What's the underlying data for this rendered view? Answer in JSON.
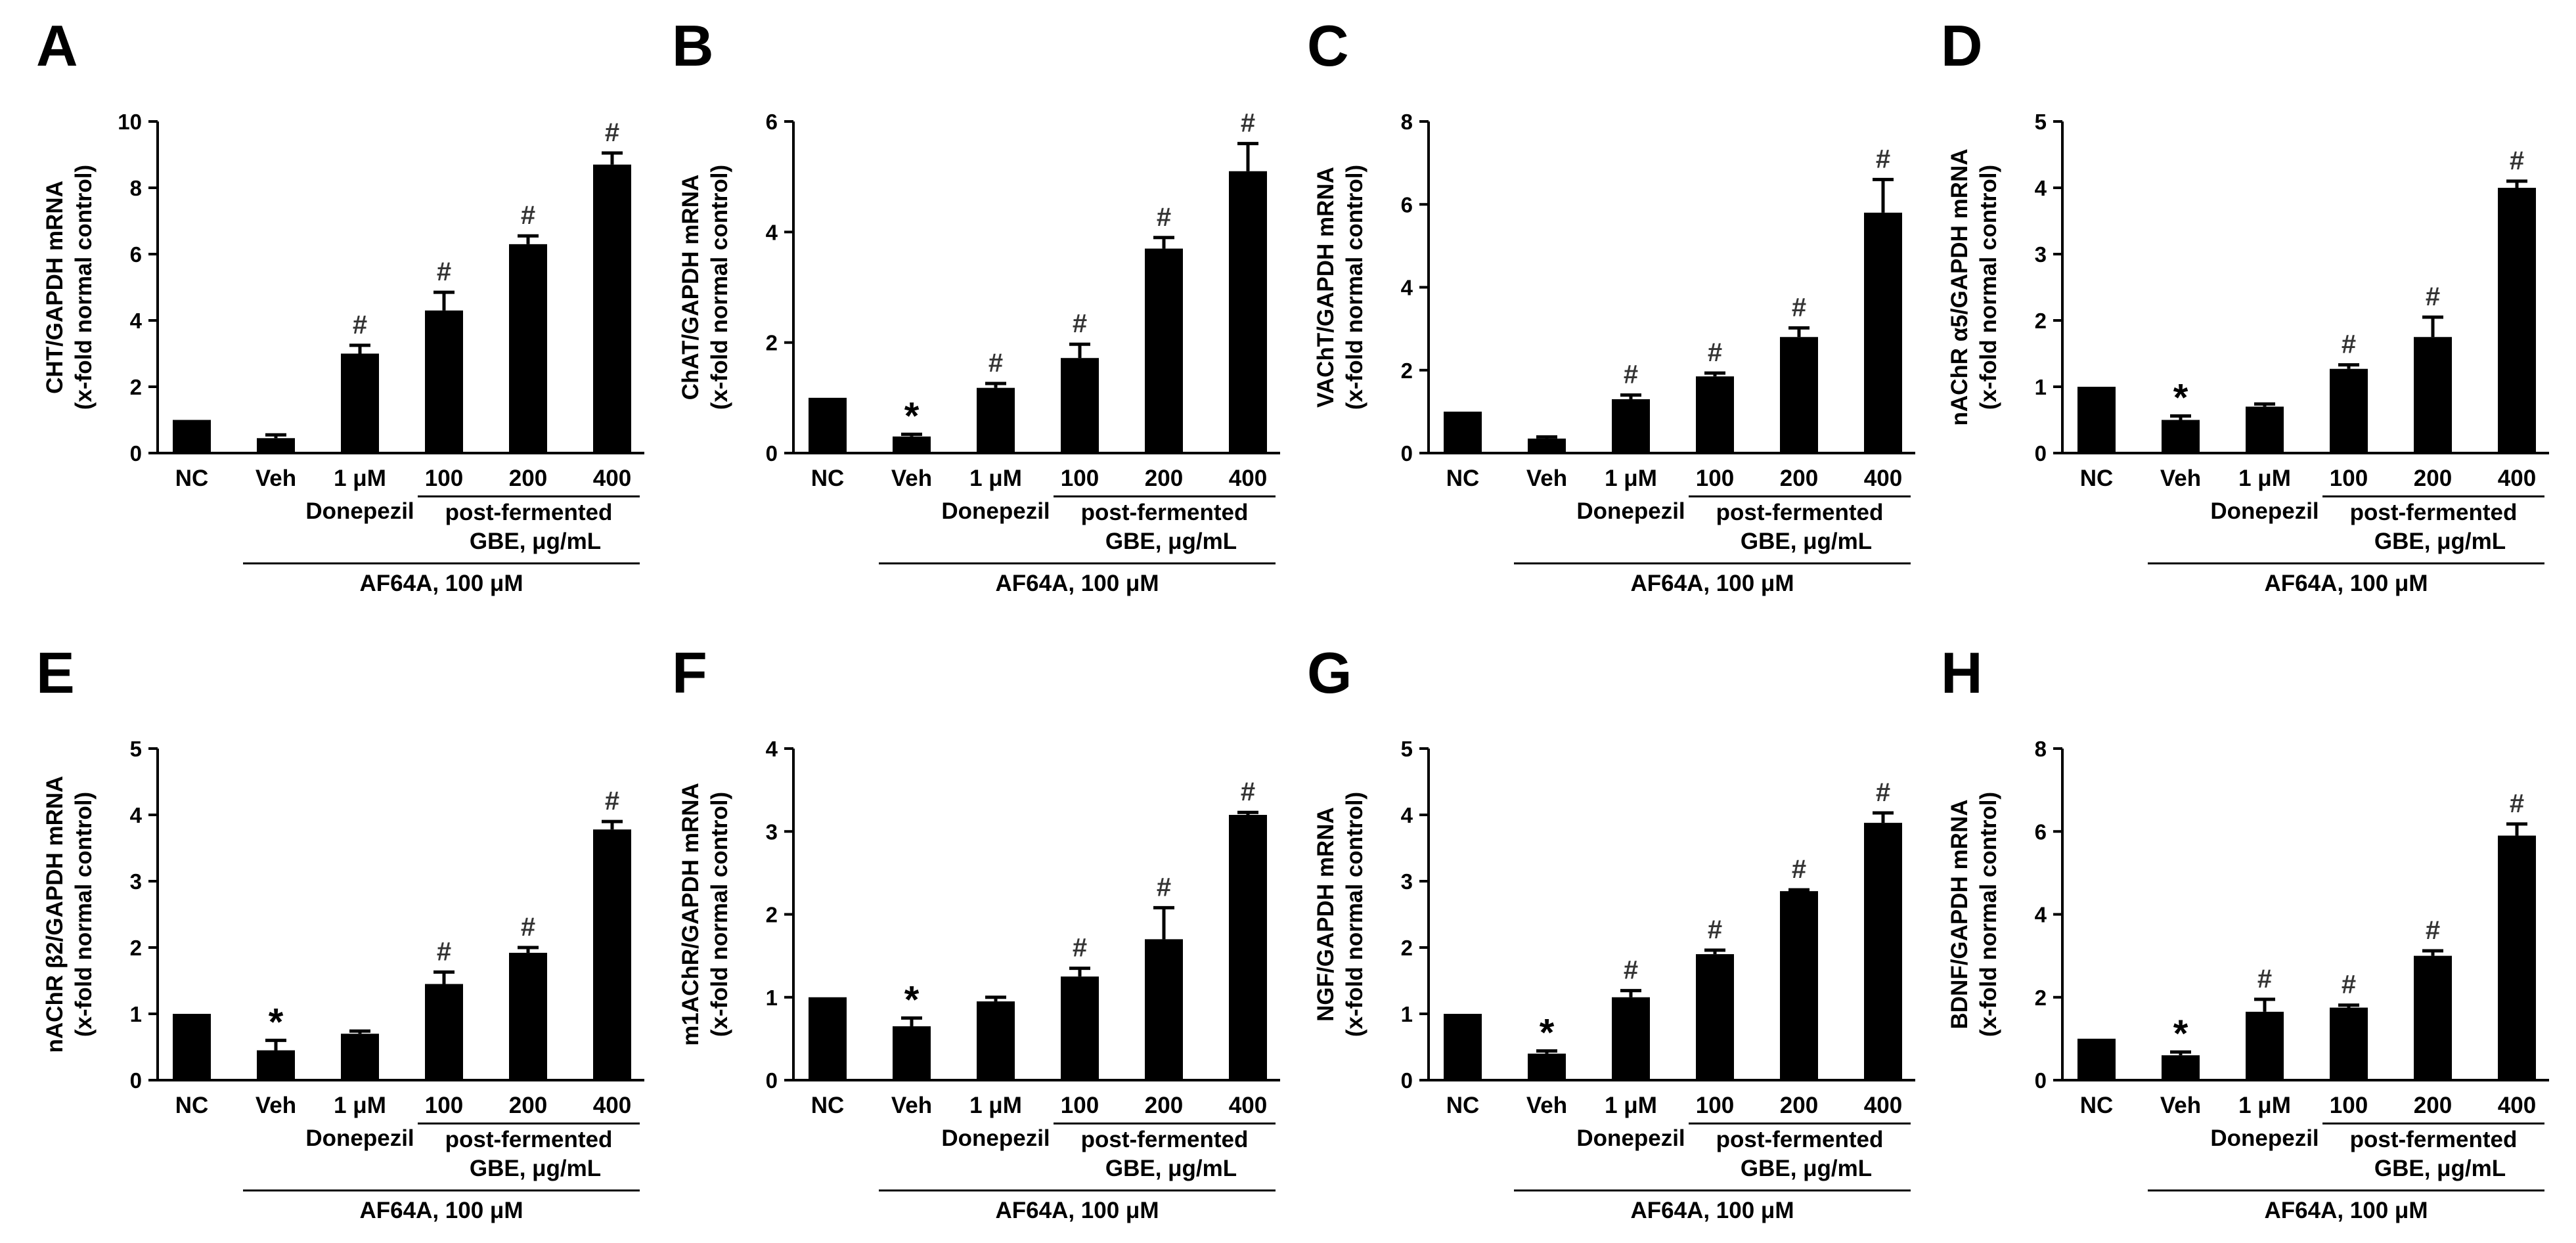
{
  "chart_data": [
    {
      "type": "bar",
      "panel": "A",
      "categories": [
        "NC",
        "Veh",
        "1 μM",
        "100",
        "200",
        "400"
      ],
      "values": [
        1.0,
        0.45,
        3.0,
        4.3,
        6.3,
        8.7
      ],
      "errors": [
        0.0,
        0.1,
        0.25,
        0.55,
        0.25,
        0.35
      ],
      "significance": [
        "",
        "",
        "#",
        "#",
        "#",
        "#"
      ],
      "ylabel": [
        "CHT/GAPDH mRNA",
        "(x-fold normal control)"
      ],
      "ylim": [
        0,
        10
      ],
      "yticks": [
        0,
        2,
        4,
        6,
        8,
        10
      ],
      "donepezil_label": "Donepezil",
      "gbe_label": [
        "post-fermented",
        "GBE, μg/mL"
      ],
      "af64a_label": "AF64A, 100 μM"
    },
    {
      "type": "bar",
      "panel": "B",
      "categories": [
        "NC",
        "Veh",
        "1 μM",
        "100",
        "200",
        "400"
      ],
      "values": [
        1.0,
        0.3,
        1.18,
        1.72,
        3.7,
        5.1
      ],
      "errors": [
        0.0,
        0.04,
        0.08,
        0.25,
        0.2,
        0.5
      ],
      "significance": [
        "",
        "*",
        "#",
        "#",
        "#",
        "#"
      ],
      "ylabel": [
        "ChAT/GAPDH mRNA",
        "(x-fold normal control)"
      ],
      "ylim": [
        0,
        6
      ],
      "yticks": [
        0,
        2,
        4,
        6
      ],
      "donepezil_label": "Donepezil",
      "gbe_label": [
        "post-fermented",
        "GBE, μg/mL"
      ],
      "af64a_label": "AF64A, 100 μM"
    },
    {
      "type": "bar",
      "panel": "C",
      "categories": [
        "NC",
        "Veh",
        "1 μM",
        "100",
        "200",
        "400"
      ],
      "values": [
        1.0,
        0.35,
        1.3,
        1.85,
        2.8,
        5.8
      ],
      "errors": [
        0.0,
        0.04,
        0.1,
        0.08,
        0.22,
        0.8
      ],
      "significance": [
        "",
        "",
        "#",
        "#",
        "#",
        "#"
      ],
      "ylabel": [
        "VAChT/GAPDH mRNA",
        "(x-fold normal control)"
      ],
      "ylim": [
        0,
        8
      ],
      "yticks": [
        0,
        2,
        4,
        6,
        8
      ],
      "donepezil_label": "Donepezil",
      "gbe_label": [
        "post-fermented",
        "GBE, μg/mL"
      ],
      "af64a_label": "AF64A, 100 μM"
    },
    {
      "type": "bar",
      "panel": "D",
      "categories": [
        "NC",
        "Veh",
        "1 μM",
        "100",
        "200",
        "400"
      ],
      "values": [
        1.0,
        0.5,
        0.7,
        1.27,
        1.75,
        4.0
      ],
      "errors": [
        0.0,
        0.06,
        0.04,
        0.06,
        0.3,
        0.1
      ],
      "significance": [
        "",
        "*",
        "",
        "#",
        "#",
        "#"
      ],
      "ylabel": [
        "nAChR α5/GAPDH mRNA",
        "(x-fold normal control)"
      ],
      "ylim": [
        0,
        5
      ],
      "yticks": [
        0,
        1,
        2,
        3,
        4,
        5
      ],
      "donepezil_label": "Donepezil",
      "gbe_label": [
        "post-fermented",
        "GBE, μg/mL"
      ],
      "af64a_label": "AF64A, 100 μM"
    },
    {
      "type": "bar",
      "panel": "E",
      "categories": [
        "NC",
        "Veh",
        "1 μM",
        "100",
        "200",
        "400"
      ],
      "values": [
        1.0,
        0.45,
        0.7,
        1.45,
        1.92,
        3.78
      ],
      "errors": [
        0.0,
        0.15,
        0.04,
        0.18,
        0.08,
        0.12
      ],
      "significance": [
        "",
        "*",
        "",
        "#",
        "#",
        "#"
      ],
      "ylabel": [
        "nAChR β2/GAPDH mRNA",
        "(x-fold normal control)"
      ],
      "ylim": [
        0,
        5
      ],
      "yticks": [
        0,
        1,
        2,
        3,
        4,
        5
      ],
      "donepezil_label": "Donepezil",
      "gbe_label": [
        "post-fermented",
        "GBE, μg/mL"
      ],
      "af64a_label": "AF64A, 100 μM"
    },
    {
      "type": "bar",
      "panel": "F",
      "categories": [
        "NC",
        "Veh",
        "1 μM",
        "100",
        "200",
        "400"
      ],
      "values": [
        1.0,
        0.65,
        0.95,
        1.25,
        1.7,
        3.2
      ],
      "errors": [
        0.0,
        0.1,
        0.05,
        0.1,
        0.38,
        0.03
      ],
      "significance": [
        "",
        "*",
        "",
        "#",
        "#",
        "#"
      ],
      "ylabel": [
        "m1AChR/GAPDH mRNA",
        "(x-fold normal control)"
      ],
      "ylim": [
        0,
        4
      ],
      "yticks": [
        0,
        1,
        2,
        3,
        4
      ],
      "donepezil_label": "Donepezil",
      "gbe_label": [
        "post-fermented",
        "GBE, μg/mL"
      ],
      "af64a_label": "AF64A, 100 μM"
    },
    {
      "type": "bar",
      "panel": "G",
      "categories": [
        "NC",
        "Veh",
        "1 μM",
        "100",
        "200",
        "400"
      ],
      "values": [
        1.0,
        0.4,
        1.25,
        1.9,
        2.85,
        3.88
      ],
      "errors": [
        0.0,
        0.04,
        0.1,
        0.06,
        0.02,
        0.15
      ],
      "significance": [
        "",
        "*",
        "#",
        "#",
        "#",
        "#"
      ],
      "ylabel": [
        "NGF/GAPDH mRNA",
        "(x-fold normal control)"
      ],
      "ylim": [
        0,
        5
      ],
      "yticks": [
        0,
        1,
        2,
        3,
        4,
        5
      ],
      "donepezil_label": "Donepezil",
      "gbe_label": [
        "post-fermented",
        "GBE, μg/mL"
      ],
      "af64a_label": "AF64A, 100 μM"
    },
    {
      "type": "bar",
      "panel": "H",
      "categories": [
        "NC",
        "Veh",
        "1 μM",
        "100",
        "200",
        "400"
      ],
      "values": [
        1.0,
        0.6,
        1.65,
        1.75,
        3.0,
        5.9
      ],
      "errors": [
        0.0,
        0.08,
        0.3,
        0.06,
        0.12,
        0.28
      ],
      "significance": [
        "",
        "*",
        "#",
        "#",
        "#",
        "#"
      ],
      "ylabel": [
        "BDNF/GAPDH mRNA",
        "(x-fold normal control)"
      ],
      "ylim": [
        0,
        8
      ],
      "yticks": [
        0,
        2,
        4,
        6,
        8
      ],
      "donepezil_label": "Donepezil",
      "gbe_label": [
        "post-fermented",
        "GBE, μg/mL"
      ],
      "af64a_label": "AF64A, 100 μM"
    }
  ]
}
